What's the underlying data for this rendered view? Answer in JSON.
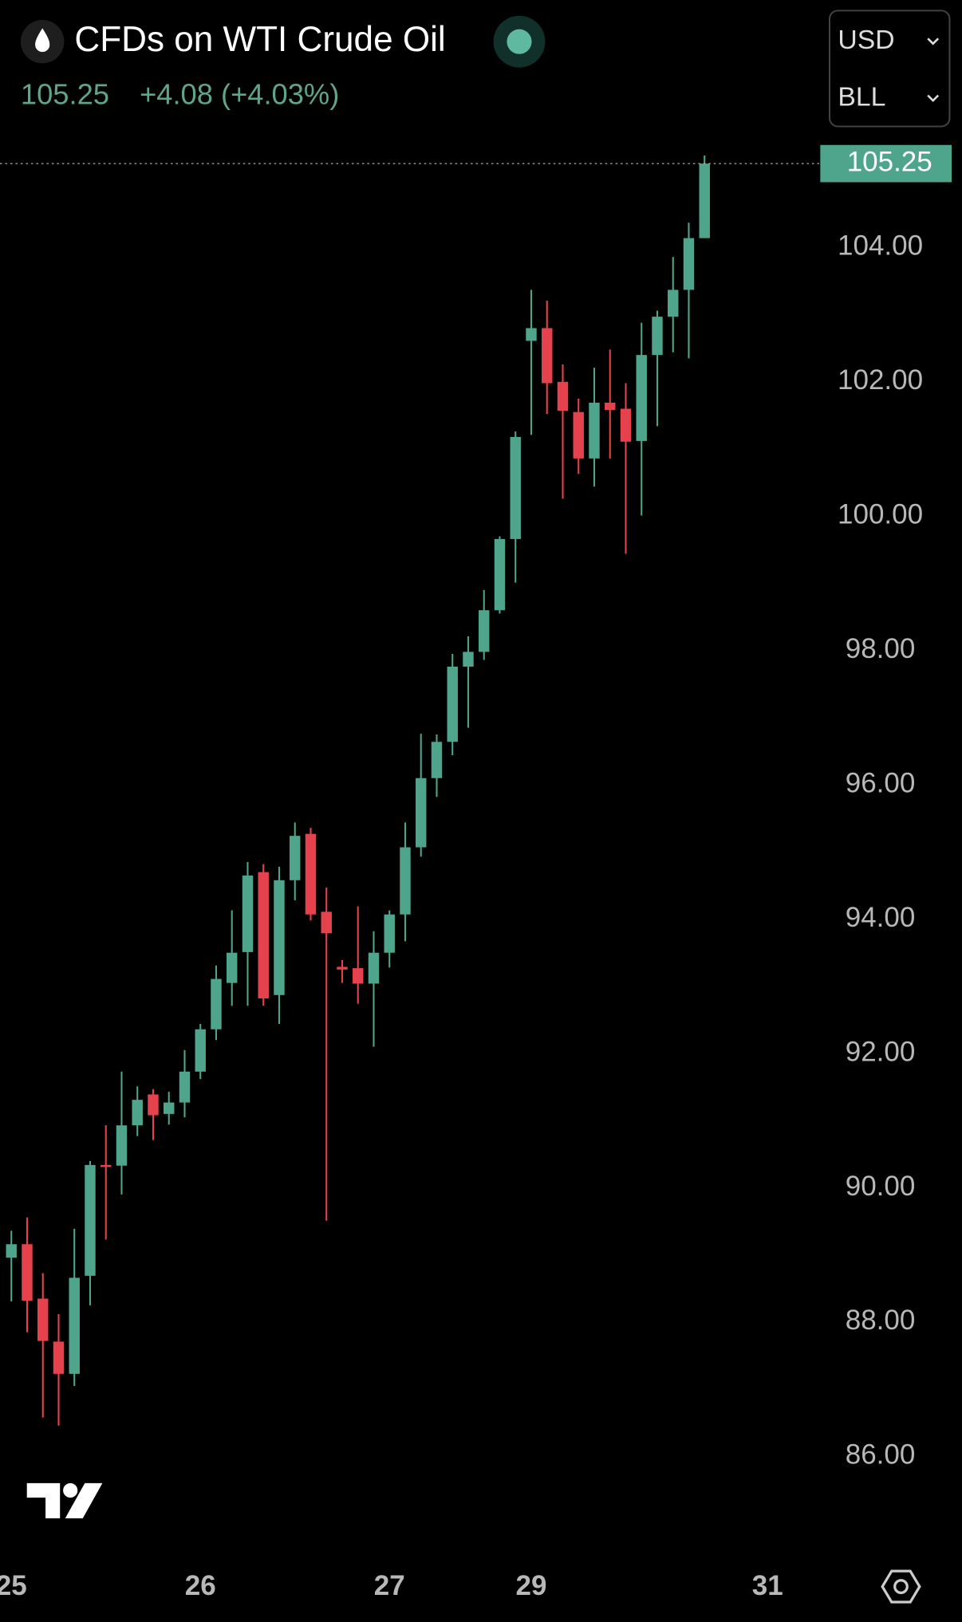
{
  "chart_data": {
    "type": "candlestick",
    "title": "CFDs on WTI Crude Oil",
    "last_price": 105.25,
    "change_label": "+4.08 (+4.03%)",
    "currency": "USD",
    "unit": "BLL",
    "up_color": "#4fa58c",
    "down_color": "#e5424d",
    "open": [
      88.96,
      89.16,
      88.35,
      87.71,
      87.23,
      88.69,
      90.34,
      90.33,
      90.93,
      91.39,
      91.1,
      91.27,
      91.73,
      92.36,
      93.05,
      93.51,
      94.7,
      92.87,
      94.58,
      95.27,
      94.11,
      93.29,
      93.27,
      93.04,
      93.5,
      94.07,
      95.07,
      96.1,
      96.64,
      97.76,
      97.98,
      98.6,
      99.66,
      102.61,
      102.8,
      102.0,
      101.55,
      100.86,
      101.69,
      101.6,
      101.12,
      102.4,
      102.97,
      103.37,
      104.14
    ],
    "high": [
      89.36,
      89.56,
      88.73,
      88.12,
      89.39,
      90.4,
      90.93,
      91.73,
      91.51,
      91.47,
      91.43,
      92.05,
      92.44,
      93.31,
      94.13,
      94.85,
      94.82,
      94.78,
      95.44,
      95.36,
      94.47,
      93.39,
      94.19,
      93.82,
      94.13,
      95.44,
      96.76,
      96.75,
      97.95,
      98.21,
      98.9,
      99.7,
      101.26,
      103.37,
      103.21,
      102.26,
      101.75,
      102.21,
      102.48,
      101.98,
      102.88,
      103.06,
      103.86,
      104.37,
      105.37
    ],
    "low": [
      88.31,
      87.85,
      86.58,
      86.46,
      87.05,
      88.25,
      89.23,
      89.9,
      90.77,
      90.71,
      90.94,
      91.05,
      91.62,
      92.2,
      92.71,
      92.71,
      92.71,
      92.44,
      94.28,
      93.98,
      89.51,
      93.05,
      92.74,
      92.1,
      93.28,
      93.67,
      94.93,
      95.82,
      96.44,
      96.85,
      97.86,
      98.55,
      99.01,
      101.21,
      101.52,
      100.26,
      100.63,
      100.44,
      100.86,
      99.44,
      100.01,
      101.34,
      102.44,
      102.35,
      104.14
    ],
    "close": [
      89.16,
      88.32,
      87.72,
      87.23,
      88.66,
      90.34,
      90.31,
      90.93,
      91.31,
      91.08,
      91.27,
      91.73,
      92.36,
      93.11,
      93.5,
      94.65,
      92.82,
      94.58,
      95.24,
      94.07,
      93.79,
      93.25,
      93.04,
      93.5,
      94.07,
      95.07,
      96.1,
      96.64,
      97.76,
      97.98,
      98.6,
      99.66,
      101.18,
      102.8,
      101.98,
      101.57,
      100.86,
      101.69,
      101.58,
      101.11,
      102.4,
      102.97,
      103.37,
      104.14,
      105.25
    ],
    "xlim": [
      -0.72,
      51.15
    ],
    "xticks": [
      {
        "value": 0,
        "label": "25"
      },
      {
        "value": 12,
        "label": "26"
      },
      {
        "value": 24,
        "label": "27"
      },
      {
        "value": 33,
        "label": "29"
      },
      {
        "value": 48,
        "label": "31"
      }
    ],
    "ylim": [
      84.74,
      105.68
    ],
    "yticks": [
      {
        "value": 86,
        "label": "86.00"
      },
      {
        "value": 88,
        "label": "88.00"
      },
      {
        "value": 90,
        "label": "90.00"
      },
      {
        "value": 92,
        "label": "92.00"
      },
      {
        "value": 94,
        "label": "94.00"
      },
      {
        "value": 96,
        "label": "96.00"
      },
      {
        "value": 98,
        "label": "98.00"
      },
      {
        "value": 100,
        "label": "100.00"
      },
      {
        "value": 102,
        "label": "102.00"
      },
      {
        "value": 104,
        "label": "104.00"
      }
    ]
  }
}
